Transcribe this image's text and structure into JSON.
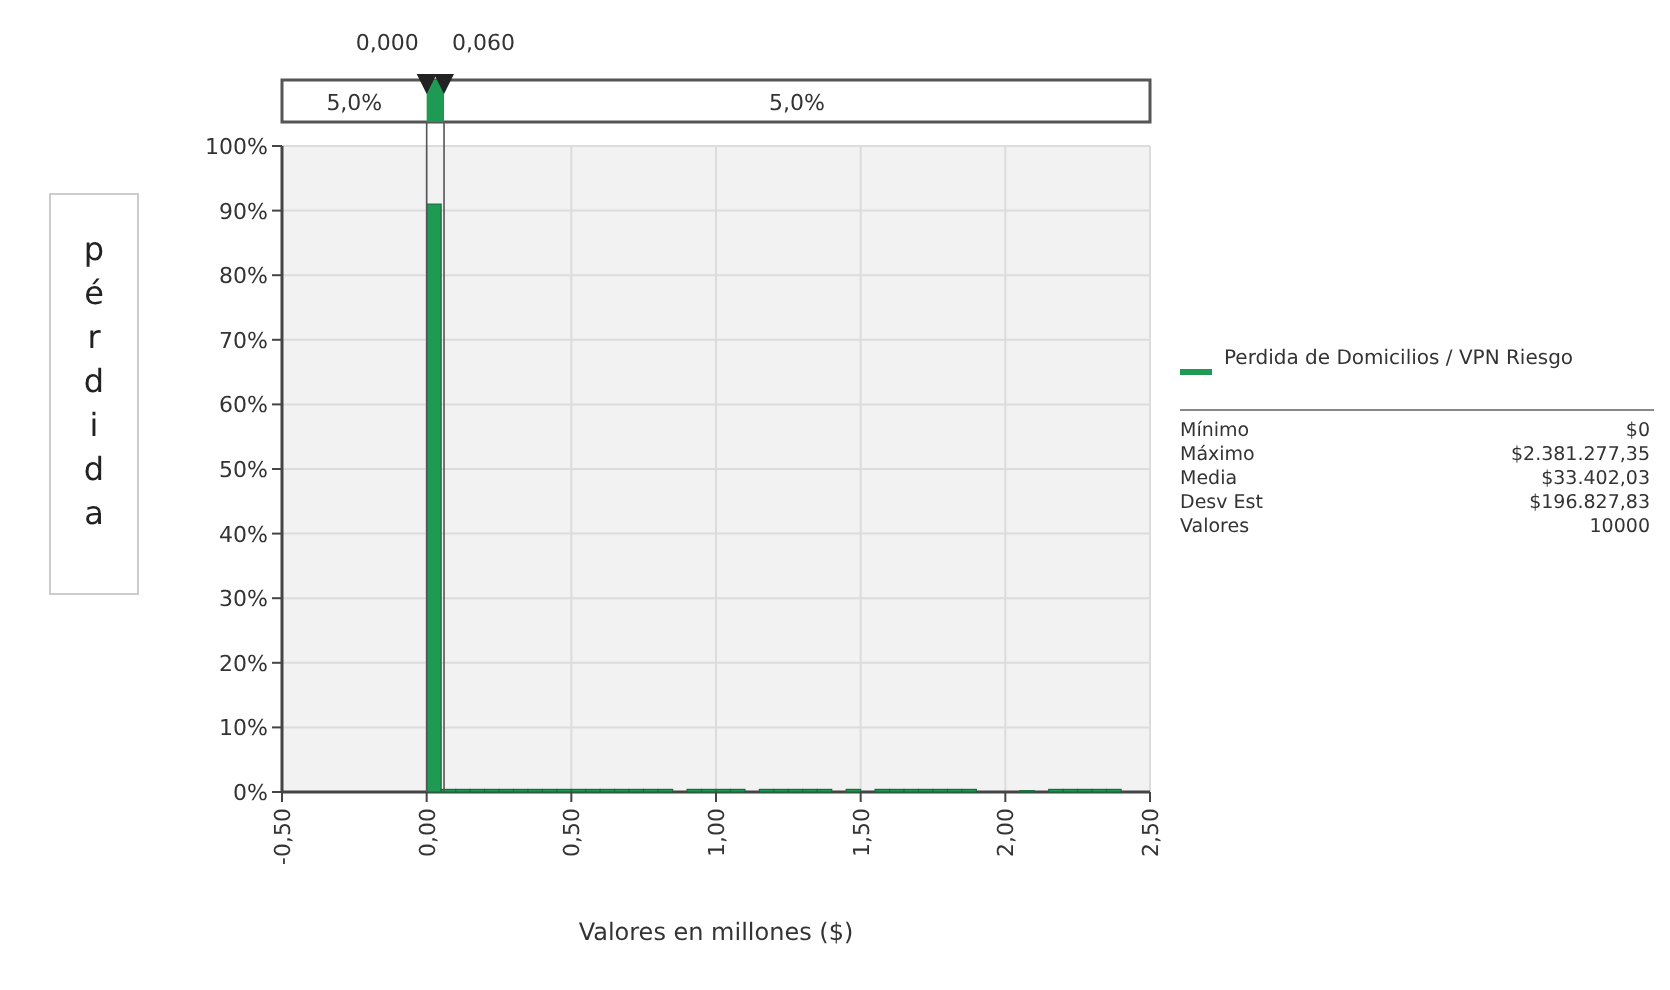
{
  "chart_data": {
    "type": "histogram",
    "ylabel": "pérdida",
    "xlabel": "Valores en millones ($)",
    "bins": [
      0,
      0.05,
      0.1,
      0.15,
      0.2,
      0.25,
      0.3,
      0.35,
      0.4,
      0.45,
      0.5,
      0.55,
      0.6,
      0.65,
      0.7,
      0.75,
      0.8,
      0.85,
      0.9,
      0.95,
      1.0,
      1.05,
      1.1,
      1.15,
      1.2,
      1.25,
      1.3,
      1.35,
      1.4,
      1.45,
      1.5,
      1.55,
      1.6,
      1.65,
      1.7,
      1.75,
      1.8,
      1.85,
      1.9,
      1.95,
      2.0,
      2.05,
      2.1,
      2.15,
      2.2,
      2.25,
      2.3,
      2.35,
      2.4
    ],
    "series": [
      {
        "name": "Perdida de Domicilios / VPN Riesgo",
        "color": "#1f9a55",
        "values": [
          91,
          0.4,
          0.4,
          0.4,
          0.4,
          0.4,
          0.4,
          0.4,
          0.4,
          0.4,
          0.4,
          0.4,
          0.4,
          0.4,
          0.4,
          0.4,
          0.4,
          0,
          0.4,
          0.4,
          0.4,
          0.4,
          0,
          0.4,
          0.4,
          0.4,
          0.4,
          0.4,
          0,
          0.4,
          0,
          0.4,
          0.4,
          0.4,
          0.4,
          0.4,
          0.4,
          0.4,
          0,
          0,
          0,
          0.2,
          0,
          0.4,
          0.4,
          0.4,
          0.4,
          0.4
        ]
      }
    ],
    "xlim": [
      -0.5,
      2.5
    ],
    "xticks": [
      {
        "value": -0.5,
        "label": "-0,50"
      },
      {
        "value": 0,
        "label": "0,00"
      },
      {
        "value": 0.5,
        "label": "0,50"
      },
      {
        "value": 1,
        "label": "1,00"
      },
      {
        "value": 1.5,
        "label": "1,50"
      },
      {
        "value": 2,
        "label": "2,00"
      },
      {
        "value": 2.5,
        "label": "2,50"
      }
    ],
    "ylim": [
      0,
      100
    ],
    "yticks": [
      {
        "value": 0,
        "label": "0%"
      },
      {
        "value": 10,
        "label": "10%"
      },
      {
        "value": 20,
        "label": "20%"
      },
      {
        "value": 30,
        "label": "30%"
      },
      {
        "value": 40,
        "label": "40%"
      },
      {
        "value": 50,
        "label": "50%"
      },
      {
        "value": 60,
        "label": "60%"
      },
      {
        "value": 70,
        "label": "70%"
      },
      {
        "value": 80,
        "label": "80%"
      },
      {
        "value": 90,
        "label": "90%"
      },
      {
        "value": 100,
        "label": "100%"
      }
    ],
    "grid": true,
    "legend": "right",
    "ref_lines": [
      {
        "axis": "x",
        "value": 0,
        "label": "0,000"
      },
      {
        "axis": "x",
        "value": 0.06,
        "label": "0,060"
      }
    ],
    "annotations": [
      "5,0%",
      "5,0%",
      "Mínimo",
      "$0",
      "Máximo",
      "$2.381.277,35",
      "Media",
      "$33.402,03",
      "Desv Est",
      "$196.827,83",
      "Valores",
      "10000"
    ]
  }
}
